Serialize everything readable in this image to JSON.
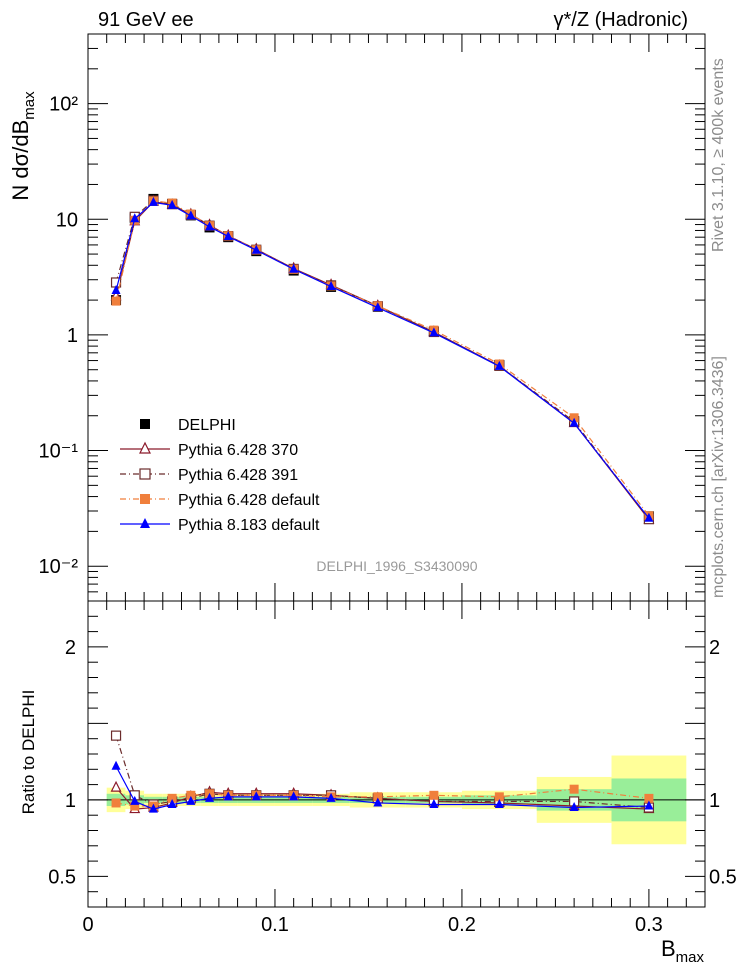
{
  "header": {
    "left": "91 GeV ee",
    "right": "γ*/Z (Hadronic)"
  },
  "side_labels": {
    "rivet": "Rivet 3.1.10, ≥ 400k events",
    "mcplots": "mcplots.cern.ch [arXiv:1306.3436]"
  },
  "analysis_id": "DELPHI_1996_S3430090",
  "chart_data": [
    {
      "type": "line",
      "panel": "main",
      "ylabel": "N dσ/dB_max",
      "yscale": "log",
      "ylim": [
        0.005,
        400
      ],
      "xlim": [
        0,
        0.33
      ],
      "yticks": [
        {
          "value": 0.01,
          "label": "10⁻²"
        },
        {
          "value": 0.1,
          "label": "10⁻¹"
        },
        {
          "value": 1,
          "label": "1"
        },
        {
          "value": 10,
          "label": "10"
        },
        {
          "value": 100,
          "label": "10²"
        }
      ],
      "legend_position": "lower-left",
      "x": [
        0.015,
        0.025,
        0.035,
        0.045,
        0.055,
        0.065,
        0.075,
        0.09,
        0.11,
        0.13,
        0.155,
        0.185,
        0.22,
        0.26,
        0.3
      ],
      "series": [
        {
          "name": "DELPHI",
          "color": "#000000",
          "marker": "square-filled",
          "line": "none",
          "values": [
            2.0,
            10.2,
            15.0,
            13.6,
            10.8,
            8.5,
            7.0,
            5.3,
            3.6,
            2.6,
            1.75,
            1.07,
            0.55,
            0.18,
            0.027
          ]
        },
        {
          "name": "Pythia 6.428 370",
          "color": "#8b1a2b",
          "marker": "triangle-open",
          "line": "solid",
          "values": [
            2.16,
            9.6,
            14.2,
            13.3,
            11.0,
            8.9,
            7.2,
            5.5,
            3.75,
            2.7,
            1.78,
            1.06,
            0.54,
            0.173,
            0.0253
          ]
        },
        {
          "name": "Pythia 6.428 391",
          "color": "#6b2c2c",
          "marker": "square-open",
          "line": "dashdot",
          "values": [
            2.84,
            10.5,
            14.5,
            13.5,
            10.9,
            8.8,
            7.15,
            5.45,
            3.72,
            2.68,
            1.77,
            1.06,
            0.54,
            0.178,
            0.0255
          ]
        },
        {
          "name": "Pythia 6.428 default",
          "color": "#f07f3c",
          "marker": "square-filled",
          "line": "dashdot",
          "values": [
            1.96,
            9.8,
            14.4,
            13.8,
            11.1,
            8.8,
            7.2,
            5.45,
            3.7,
            2.65,
            1.78,
            1.1,
            0.56,
            0.192,
            0.0273
          ]
        },
        {
          "name": "Pythia 8.183 default",
          "color": "#0000ff",
          "marker": "triangle-filled",
          "line": "solid",
          "values": [
            2.42,
            10.1,
            14.0,
            13.2,
            10.7,
            8.6,
            7.1,
            5.4,
            3.7,
            2.62,
            1.72,
            1.04,
            0.535,
            0.172,
            0.026
          ]
        }
      ]
    },
    {
      "type": "line",
      "panel": "ratio",
      "xlabel": "B_max",
      "ylabel": "Ratio to DELPHI",
      "ylim": [
        0.3,
        2.3
      ],
      "xlim": [
        0,
        0.33
      ],
      "xticks": [
        {
          "value": 0,
          "label": "0"
        },
        {
          "value": 0.1,
          "label": "0.1"
        },
        {
          "value": 0.2,
          "label": "0.2"
        },
        {
          "value": 0.3,
          "label": "0.3"
        }
      ],
      "yticks": [
        {
          "value": 0.5,
          "label": "0.5"
        },
        {
          "value": 1,
          "label": "1"
        },
        {
          "value": 2,
          "label": "2"
        }
      ],
      "bins": [
        {
          "lo": 0.01,
          "hi": 0.02,
          "inner": 0.04,
          "outer": 0.08
        },
        {
          "lo": 0.02,
          "hi": 0.03,
          "inner": 0.03,
          "outer": 0.06
        },
        {
          "lo": 0.03,
          "hi": 0.04,
          "inner": 0.02,
          "outer": 0.04
        },
        {
          "lo": 0.04,
          "hi": 0.05,
          "inner": 0.02,
          "outer": 0.04
        },
        {
          "lo": 0.05,
          "hi": 0.06,
          "inner": 0.02,
          "outer": 0.04
        },
        {
          "lo": 0.06,
          "hi": 0.07,
          "inner": 0.02,
          "outer": 0.04
        },
        {
          "lo": 0.07,
          "hi": 0.08,
          "inner": 0.02,
          "outer": 0.04
        },
        {
          "lo": 0.08,
          "hi": 0.1,
          "inner": 0.02,
          "outer": 0.04
        },
        {
          "lo": 0.1,
          "hi": 0.12,
          "inner": 0.02,
          "outer": 0.04
        },
        {
          "lo": 0.12,
          "hi": 0.14,
          "inner": 0.02,
          "outer": 0.04
        },
        {
          "lo": 0.14,
          "hi": 0.17,
          "inner": 0.02,
          "outer": 0.05
        },
        {
          "lo": 0.17,
          "hi": 0.2,
          "inner": 0.02,
          "outer": 0.05
        },
        {
          "lo": 0.2,
          "hi": 0.24,
          "inner": 0.03,
          "outer": 0.06
        },
        {
          "lo": 0.24,
          "hi": 0.28,
          "inner": 0.07,
          "outer": 0.15
        },
        {
          "lo": 0.28,
          "hi": 0.32,
          "inner": 0.14,
          "outer": 0.29
        }
      ],
      "band_colors": {
        "inner": "#99ee99",
        "outer": "#ffff99"
      },
      "x": [
        0.015,
        0.025,
        0.035,
        0.045,
        0.055,
        0.065,
        0.075,
        0.09,
        0.11,
        0.13,
        0.155,
        0.185,
        0.22,
        0.26,
        0.3
      ],
      "series": [
        {
          "name": "Pythia 6.428 370",
          "color": "#8b1a2b",
          "marker": "triangle-open",
          "line": "solid",
          "values": [
            1.08,
            0.94,
            0.95,
            0.98,
            1.02,
            1.05,
            1.04,
            1.04,
            1.04,
            1.03,
            1.01,
            0.99,
            0.98,
            0.96,
            0.94
          ]
        },
        {
          "name": "Pythia 6.428 391",
          "color": "#6b2c2c",
          "marker": "square-open",
          "line": "dashdot",
          "values": [
            1.42,
            1.03,
            0.97,
            0.99,
            1.01,
            1.04,
            1.03,
            1.03,
            1.03,
            1.03,
            1.01,
            0.99,
            0.99,
            0.99,
            0.95
          ]
        },
        {
          "name": "Pythia 6.428 default",
          "color": "#f07f3c",
          "marker": "square-filled",
          "line": "dashdot",
          "values": [
            0.98,
            0.96,
            0.96,
            1.01,
            1.03,
            1.04,
            1.03,
            1.03,
            1.03,
            1.02,
            1.02,
            1.03,
            1.02,
            1.07,
            1.01
          ]
        },
        {
          "name": "Pythia 8.183 default",
          "color": "#0000ff",
          "marker": "triangle-filled",
          "line": "solid",
          "values": [
            1.22,
            0.99,
            0.94,
            0.97,
            0.99,
            1.01,
            1.02,
            1.02,
            1.02,
            1.01,
            0.98,
            0.97,
            0.97,
            0.95,
            0.96
          ]
        }
      ]
    }
  ]
}
